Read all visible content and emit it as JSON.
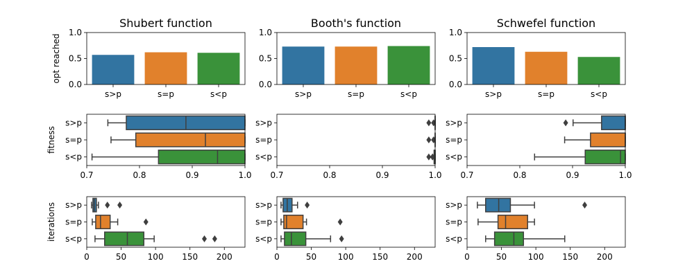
{
  "colors": {
    "s>p": "#3274a1",
    "s=p": "#e1812c",
    "s<p": "#3a923a",
    "whisker": "#3f3f3f"
  },
  "chart_data": [
    {
      "type": "bar",
      "row": 0,
      "col": 0,
      "title": "Shubert function",
      "ylabel": "opt reached",
      "categories": [
        "s>p",
        "s=p",
        "s<p"
      ],
      "values": [
        0.57,
        0.62,
        0.61
      ],
      "ylim": [
        0.0,
        1.0
      ],
      "yticks": [
        "0.0",
        "0.5",
        "1.0"
      ]
    },
    {
      "type": "bar",
      "row": 0,
      "col": 1,
      "title": "Booth's function",
      "ylabel": "",
      "categories": [
        "s>p",
        "s=p",
        "s<p"
      ],
      "values": [
        0.73,
        0.73,
        0.74
      ],
      "ylim": [
        0.0,
        1.0
      ],
      "yticks": [
        "0.0",
        "0.5",
        "1.0"
      ]
    },
    {
      "type": "bar",
      "row": 0,
      "col": 2,
      "title": "Schwefel function",
      "ylabel": "",
      "categories": [
        "s>p",
        "s=p",
        "s<p"
      ],
      "values": [
        0.72,
        0.63,
        0.53
      ],
      "ylim": [
        0.0,
        1.0
      ],
      "yticks": [
        "0.0",
        "0.5",
        "1.0"
      ]
    },
    {
      "type": "box",
      "row": 1,
      "col": 0,
      "ylabel": "fitness",
      "categories": [
        "s>p",
        "s=p",
        "s<p"
      ],
      "xlim": [
        0.7,
        1.0
      ],
      "xticks": [
        "0.7",
        "0.8",
        "0.9",
        "1.0"
      ],
      "boxes": [
        {
          "min": 0.74,
          "q1": 0.775,
          "median": 0.888,
          "q3": 1.0,
          "max": 1.0,
          "outliers": []
        },
        {
          "min": 0.746,
          "q1": 0.793,
          "median": 0.925,
          "q3": 1.0,
          "max": 1.0,
          "outliers": []
        },
        {
          "min": 0.71,
          "q1": 0.836,
          "median": 0.948,
          "q3": 1.0,
          "max": 1.0,
          "outliers": []
        }
      ]
    },
    {
      "type": "box",
      "row": 1,
      "col": 1,
      "ylabel": "",
      "categories": [
        "s>p",
        "s=p",
        "s<p"
      ],
      "xlim": [
        0.7,
        1.0
      ],
      "xticks": [
        "0.7",
        "0.8",
        "0.9",
        "1.0"
      ],
      "boxes": [
        {
          "min": 1.0,
          "q1": 1.0,
          "median": 1.0,
          "q3": 1.0,
          "max": 1.0,
          "outliers": [
            0.988,
            0.997
          ]
        },
        {
          "min": 1.0,
          "q1": 1.0,
          "median": 1.0,
          "q3": 1.0,
          "max": 1.0,
          "outliers": [
            0.988,
            0.997
          ]
        },
        {
          "min": 0.998,
          "q1": 0.998,
          "median": 1.0,
          "q3": 1.0,
          "max": 1.0,
          "outliers": [
            0.988,
            0.995
          ]
        }
      ]
    },
    {
      "type": "box",
      "row": 1,
      "col": 2,
      "ylabel": "",
      "categories": [
        "s>p",
        "s=p",
        "s<p"
      ],
      "xlim": [
        0.7,
        1.0
      ],
      "xticks": [
        "0.7",
        "0.8",
        "0.9",
        "1.0"
      ],
      "boxes": [
        {
          "min": 0.901,
          "q1": 0.955,
          "median": 1.0,
          "q3": 1.0,
          "max": 1.0,
          "outliers": [
            0.887
          ]
        },
        {
          "min": 0.885,
          "q1": 0.934,
          "median": 1.0,
          "q3": 1.0,
          "max": 1.0,
          "outliers": []
        },
        {
          "min": 0.828,
          "q1": 0.924,
          "median": 0.991,
          "q3": 1.0,
          "max": 1.0,
          "outliers": []
        }
      ]
    },
    {
      "type": "box",
      "row": 2,
      "col": 0,
      "ylabel": "iterations",
      "categories": [
        "s>p",
        "s=p",
        "s<p"
      ],
      "xlim": [
        0,
        230
      ],
      "xticks": [
        "0",
        "50",
        "100",
        "150",
        "200"
      ],
      "boxes": [
        {
          "min": 7,
          "q1": 9,
          "median": 11,
          "q3": 14,
          "max": 17,
          "outliers": [
            30,
            48
          ]
        },
        {
          "min": 8,
          "q1": 13,
          "median": 20,
          "q3": 34,
          "max": 45,
          "outliers": [
            86
          ]
        },
        {
          "min": 12,
          "q1": 26,
          "median": 59,
          "q3": 83,
          "max": 98,
          "outliers": [
            171,
            186
          ]
        }
      ]
    },
    {
      "type": "box",
      "row": 2,
      "col": 1,
      "ylabel": "",
      "categories": [
        "s>p",
        "s=p",
        "s<p"
      ],
      "xlim": [
        0,
        230
      ],
      "xticks": [
        "0",
        "50",
        "100",
        "150",
        "200"
      ],
      "boxes": [
        {
          "min": 6,
          "q1": 9,
          "median": 15,
          "q3": 22,
          "max": 30,
          "outliers": [
            44
          ]
        },
        {
          "min": 6,
          "q1": 10,
          "median": 14,
          "q3": 38,
          "max": 43,
          "outliers": [
            92
          ]
        },
        {
          "min": 6,
          "q1": 11,
          "median": 21,
          "q3": 42,
          "max": 78,
          "outliers": [
            94
          ]
        }
      ]
    },
    {
      "type": "box",
      "row": 2,
      "col": 2,
      "ylabel": "",
      "categories": [
        "s>p",
        "s=p",
        "s<p"
      ],
      "xlim": [
        0,
        230
      ],
      "xticks": [
        "0",
        "50",
        "100",
        "150",
        "200"
      ],
      "boxes": [
        {
          "min": 15,
          "q1": 27,
          "median": 46,
          "q3": 63,
          "max": 98,
          "outliers": [
            171
          ]
        },
        {
          "min": 16,
          "q1": 45,
          "median": 56,
          "q3": 88,
          "max": 98,
          "outliers": []
        },
        {
          "min": 27,
          "q1": 40,
          "median": 68,
          "q3": 82,
          "max": 142,
          "outliers": []
        }
      ]
    }
  ]
}
